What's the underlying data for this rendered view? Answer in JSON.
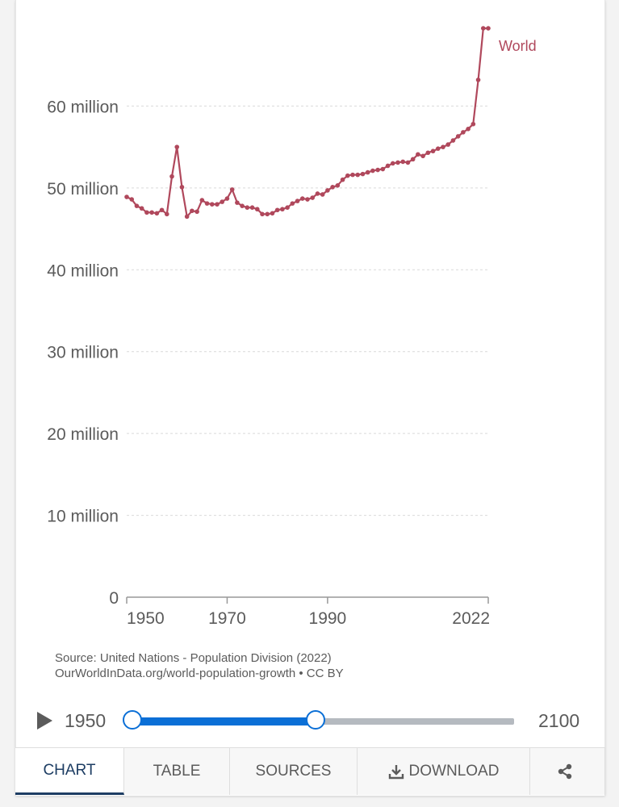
{
  "chart_data": {
    "type": "line",
    "title": "",
    "xlabel": "",
    "ylabel": "",
    "x_ticks": [
      "1950",
      "1970",
      "1990",
      "2022"
    ],
    "y_ticks": [
      {
        "value": 0,
        "label": "0"
      },
      {
        "value": 10000000,
        "label": "10 million"
      },
      {
        "value": 20000000,
        "label": "20 million"
      },
      {
        "value": 30000000,
        "label": "30 million"
      },
      {
        "value": 40000000,
        "label": "40 million"
      },
      {
        "value": 50000000,
        "label": "50 million"
      },
      {
        "value": 60000000,
        "label": "60 million"
      }
    ],
    "xlim": [
      1950,
      2022
    ],
    "ylim": [
      0,
      70000000
    ],
    "grid": "horizontal dashed",
    "series": [
      {
        "name": "World",
        "color": "#b0485c",
        "x": [
          1950,
          1951,
          1952,
          1953,
          1954,
          1955,
          1956,
          1957,
          1958,
          1959,
          1960,
          1961,
          1962,
          1963,
          1964,
          1965,
          1966,
          1967,
          1968,
          1969,
          1970,
          1971,
          1972,
          1973,
          1974,
          1975,
          1976,
          1977,
          1978,
          1979,
          1980,
          1981,
          1982,
          1983,
          1984,
          1985,
          1986,
          1987,
          1988,
          1989,
          1990,
          1991,
          1992,
          1993,
          1994,
          1995,
          1996,
          1997,
          1998,
          1999,
          2000,
          2001,
          2002,
          2003,
          2004,
          2005,
          2006,
          2007,
          2008,
          2009,
          2010,
          2011,
          2012,
          2013,
          2014,
          2015,
          2016,
          2017,
          2018,
          2019,
          2020,
          2021,
          2022
        ],
        "values": [
          48900000,
          48600000,
          47800000,
          47500000,
          47000000,
          47000000,
          46900000,
          47300000,
          46800000,
          51400000,
          55000000,
          50100000,
          46500000,
          47200000,
          47100000,
          48500000,
          48100000,
          48000000,
          48000000,
          48300000,
          48700000,
          49800000,
          48200000,
          47800000,
          47600000,
          47600000,
          47400000,
          46800000,
          46800000,
          46900000,
          47300000,
          47400000,
          47600000,
          48100000,
          48400000,
          48700000,
          48600000,
          48800000,
          49300000,
          49200000,
          49700000,
          50100000,
          50300000,
          51000000,
          51500000,
          51600000,
          51600000,
          51700000,
          51900000,
          52100000,
          52200000,
          52300000,
          52700000,
          53000000,
          53100000,
          53200000,
          53100000,
          53500000,
          54100000,
          53900000,
          54300000,
          54500000,
          54800000,
          55000000,
          55300000,
          55800000,
          56300000,
          56800000,
          57200000,
          57800000,
          63200000,
          69500000,
          69500000
        ]
      }
    ]
  },
  "source": {
    "line1": "Source: United Nations - Population Division (2022)",
    "line2": "OurWorldInData.org/world-population-growth • CC BY"
  },
  "timeline": {
    "start_label": "1950",
    "end_label": "2100",
    "range_start": 1950,
    "range_end": 2100,
    "selected_start": 1950,
    "selected_end": 2022
  },
  "tabs": {
    "chart": "CHART",
    "table": "TABLE",
    "sources": "SOURCES",
    "download": "DOWNLOAD",
    "active": "chart"
  },
  "icons": {
    "play": "play-icon",
    "download": "download-icon",
    "share": "share-icon"
  },
  "colors": {
    "series": "#b0485c",
    "slider_accent": "#0b6fd6",
    "active_tab_text": "#1d3d63"
  }
}
